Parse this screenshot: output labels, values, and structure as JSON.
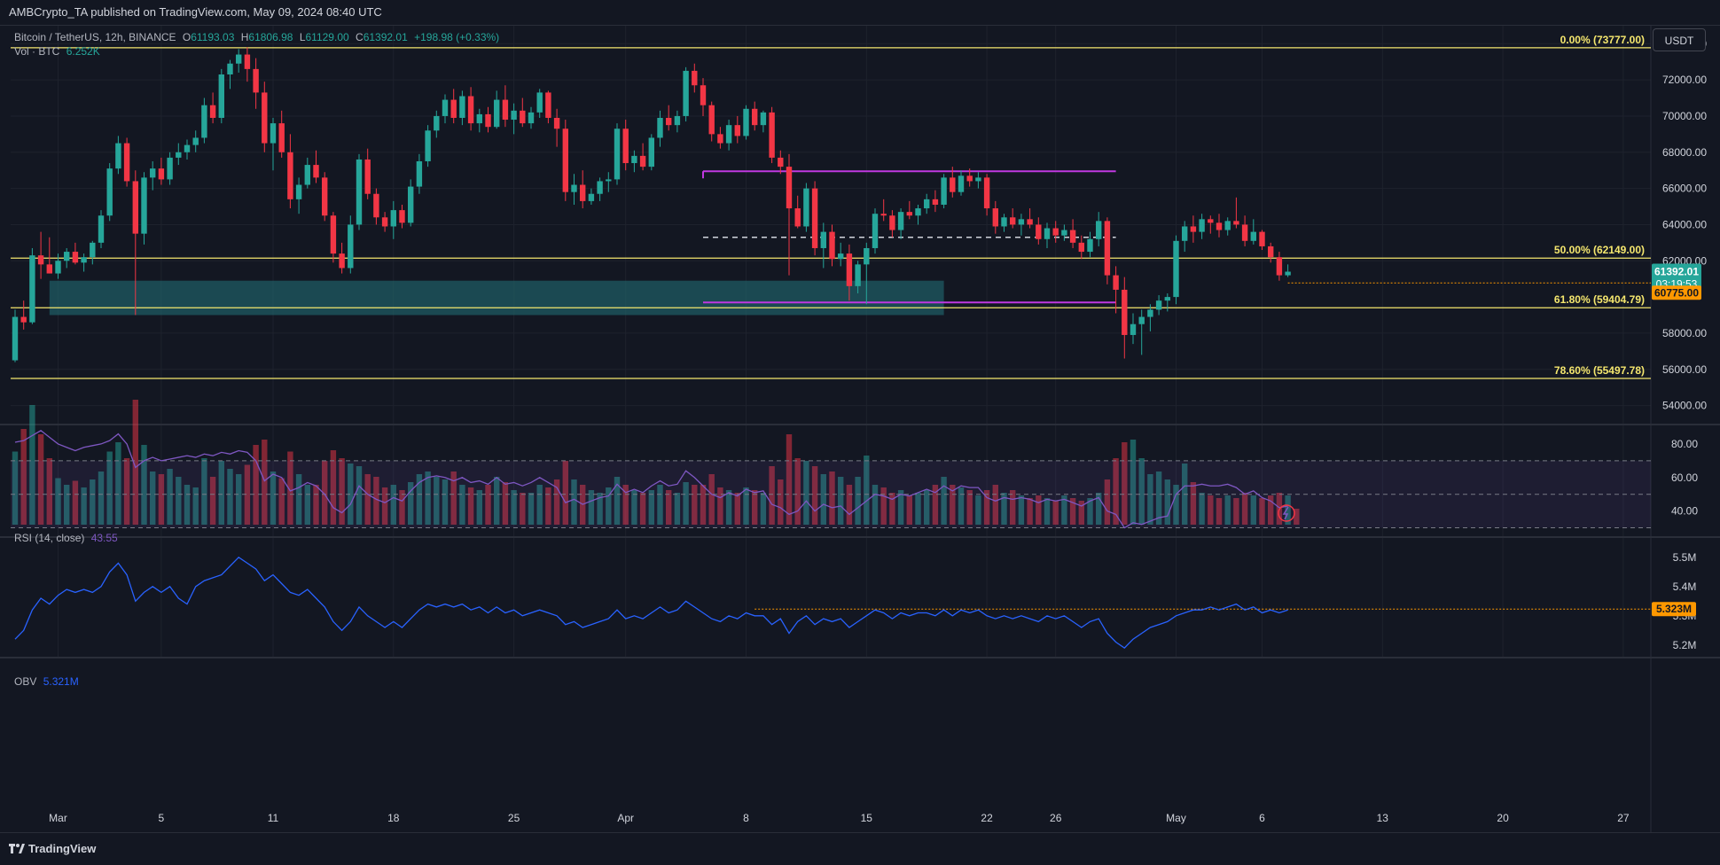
{
  "publisher": {
    "text": "AMBCrypto_TA published on TradingView.com, May 09, 2024 08:40 UTC"
  },
  "legend": {
    "symbol": "Bitcoin / TetherUS, 12h, BINANCE",
    "open_label": "O",
    "open": "61193.03",
    "high_label": "H",
    "high": "61806.98",
    "low_label": "L",
    "low": "61129.00",
    "close_label": "C",
    "close": "61392.01",
    "change": "+198.98 (+0.33%)",
    "vol_label": "Vol · BTC",
    "vol_value": "6.252K"
  },
  "currency": "USDT",
  "rsi": {
    "label": "RSI (14, close)",
    "value": "43.55"
  },
  "obv": {
    "label": "OBV",
    "value": "5.321M",
    "price_tag": "5.323M"
  },
  "price_tags": {
    "last": "61392.01",
    "countdown": "03:19:53",
    "level": "60775.00"
  },
  "footer": {
    "brand": "TradingView"
  },
  "colors": {
    "up": "#26a69a",
    "down": "#f23645",
    "fib": "#f5e76e",
    "range": "#c038e0",
    "rsi": "#7e57c2",
    "obv": "#2962ff",
    "zone": "#1f5f66",
    "tag": "#ff9800"
  },
  "chart_data": {
    "type": "candlestick",
    "timeframe": "12h",
    "x_ticks": [
      "Mar",
      "5",
      "11",
      "18",
      "25",
      "Apr",
      "8",
      "15",
      "22",
      "26",
      "May",
      "6",
      "13",
      "20",
      "27"
    ],
    "y_ticks": [
      "74000.00",
      "72000.00",
      "70000.00",
      "68000.00",
      "66000.00",
      "64000.00",
      "62000.00",
      "58000.00",
      "56000.00",
      "54000.00"
    ],
    "ylim": [
      53000,
      74700
    ],
    "fib_levels": [
      {
        "label": "0.00% (73777.00)",
        "value": 73777
      },
      {
        "label": "50.00% (62149.00)",
        "value": 62149
      },
      {
        "label": "61.80% (59404.79)",
        "value": 59404.79
      },
      {
        "label": "78.60% (55497.78)",
        "value": 55497.78
      }
    ],
    "range_high": 66950,
    "range_mid": 63300,
    "range_low": 59700,
    "demand_zone": [
      59000,
      60900
    ],
    "candles": [
      [
        56.5,
        59.3,
        56.4,
        58.9
      ],
      [
        58.9,
        59.8,
        58.2,
        58.6
      ],
      [
        58.6,
        62.7,
        58.5,
        62.3
      ],
      [
        62.3,
        63.6,
        61.0,
        61.8
      ],
      [
        61.8,
        63.3,
        61.3,
        61.3
      ],
      [
        61.3,
        62.4,
        61.0,
        62.0
      ],
      [
        62.0,
        62.7,
        61.6,
        62.5
      ],
      [
        62.5,
        63.0,
        61.8,
        61.9
      ],
      [
        61.9,
        62.4,
        61.4,
        62.2
      ],
      [
        62.2,
        63.1,
        61.8,
        63.0
      ],
      [
        63.0,
        64.8,
        62.7,
        64.5
      ],
      [
        64.5,
        67.4,
        64.2,
        67.1
      ],
      [
        67.1,
        68.9,
        66.8,
        68.5
      ],
      [
        68.5,
        68.8,
        66.1,
        66.4
      ],
      [
        66.4,
        67.0,
        59.0,
        63.5
      ],
      [
        63.5,
        66.9,
        62.9,
        66.6
      ],
      [
        66.6,
        67.5,
        65.9,
        67.1
      ],
      [
        67.1,
        67.7,
        66.2,
        66.5
      ],
      [
        66.5,
        68.0,
        66.2,
        67.7
      ],
      [
        67.7,
        68.5,
        67.3,
        68.0
      ],
      [
        68.0,
        68.7,
        67.6,
        68.4
      ],
      [
        68.4,
        69.2,
        68.0,
        68.8
      ],
      [
        68.8,
        71.0,
        68.5,
        70.6
      ],
      [
        70.6,
        71.3,
        69.6,
        69.9
      ],
      [
        69.9,
        72.6,
        69.6,
        72.3
      ],
      [
        72.3,
        73.1,
        71.5,
        72.9
      ],
      [
        72.9,
        73.7,
        72.4,
        73.4
      ],
      [
        73.4,
        73.8,
        71.9,
        72.6
      ],
      [
        72.6,
        73.2,
        70.4,
        71.3
      ],
      [
        71.3,
        71.9,
        68.0,
        68.5
      ],
      [
        68.5,
        69.9,
        67.0,
        69.6
      ],
      [
        69.6,
        70.3,
        67.7,
        68.0
      ],
      [
        68.0,
        69.0,
        64.9,
        65.4
      ],
      [
        65.4,
        66.6,
        64.6,
        66.2
      ],
      [
        66.2,
        67.7,
        66.0,
        67.3
      ],
      [
        67.3,
        68.1,
        66.3,
        66.6
      ],
      [
        66.6,
        66.9,
        64.2,
        64.5
      ],
      [
        64.5,
        64.7,
        61.9,
        62.4
      ],
      [
        62.4,
        63.0,
        61.3,
        61.6
      ],
      [
        61.6,
        64.5,
        61.3,
        64.0
      ],
      [
        64.0,
        67.9,
        63.7,
        67.6
      ],
      [
        67.6,
        68.2,
        65.4,
        65.7
      ],
      [
        65.7,
        66.0,
        64.0,
        64.4
      ],
      [
        64.4,
        64.7,
        63.6,
        63.9
      ],
      [
        63.9,
        65.3,
        63.2,
        64.8
      ],
      [
        64.8,
        65.1,
        63.8,
        64.1
      ],
      [
        64.1,
        66.5,
        63.9,
        66.1
      ],
      [
        66.1,
        67.9,
        65.7,
        67.5
      ],
      [
        67.5,
        69.5,
        67.2,
        69.2
      ],
      [
        69.2,
        70.3,
        68.8,
        70.0
      ],
      [
        70.0,
        71.2,
        69.6,
        70.9
      ],
      [
        70.9,
        71.5,
        69.6,
        69.9
      ],
      [
        69.9,
        71.4,
        69.5,
        71.1
      ],
      [
        71.1,
        71.6,
        69.2,
        69.6
      ],
      [
        69.6,
        70.4,
        69.1,
        70.1
      ],
      [
        70.1,
        70.5,
        69.1,
        69.4
      ],
      [
        69.4,
        71.4,
        69.3,
        70.9
      ],
      [
        70.9,
        71.7,
        69.4,
        69.8
      ],
      [
        69.8,
        70.7,
        69.0,
        70.3
      ],
      [
        70.3,
        71.0,
        69.4,
        69.6
      ],
      [
        69.6,
        70.5,
        69.3,
        70.2
      ],
      [
        70.2,
        71.5,
        69.9,
        71.3
      ],
      [
        71.3,
        71.4,
        69.6,
        69.9
      ],
      [
        69.9,
        70.4,
        68.3,
        69.3
      ],
      [
        69.3,
        69.8,
        65.3,
        65.8
      ],
      [
        65.8,
        66.8,
        65.1,
        66.2
      ],
      [
        66.2,
        67.0,
        64.9,
        65.3
      ],
      [
        65.3,
        66.0,
        65.1,
        65.7
      ],
      [
        65.7,
        66.6,
        65.3,
        66.4
      ],
      [
        66.4,
        66.9,
        65.8,
        66.5
      ],
      [
        66.5,
        69.6,
        66.2,
        69.3
      ],
      [
        69.3,
        69.8,
        67.0,
        67.4
      ],
      [
        67.4,
        68.1,
        66.9,
        67.8
      ],
      [
        67.8,
        68.5,
        67.0,
        67.2
      ],
      [
        67.2,
        69.0,
        67.0,
        68.8
      ],
      [
        68.8,
        70.3,
        68.3,
        69.9
      ],
      [
        69.9,
        70.6,
        69.2,
        69.5
      ],
      [
        69.5,
        70.3,
        69.1,
        70.0
      ],
      [
        70.0,
        72.7,
        69.7,
        72.5
      ],
      [
        72.5,
        72.9,
        71.3,
        71.7
      ],
      [
        71.7,
        72.1,
        70.0,
        70.6
      ],
      [
        70.6,
        70.8,
        68.6,
        69.0
      ],
      [
        69.0,
        69.4,
        68.2,
        68.5
      ],
      [
        68.5,
        69.8,
        68.1,
        69.5
      ],
      [
        69.5,
        70.0,
        68.5,
        68.9
      ],
      [
        68.9,
        70.6,
        68.7,
        70.4
      ],
      [
        70.4,
        70.8,
        69.2,
        69.5
      ],
      [
        69.5,
        70.3,
        69.1,
        70.2
      ],
      [
        70.2,
        70.5,
        67.4,
        67.7
      ],
      [
        67.7,
        68.1,
        66.8,
        67.2
      ],
      [
        67.2,
        67.9,
        61.2,
        64.9
      ],
      [
        64.9,
        65.6,
        63.8,
        63.9
      ],
      [
        63.9,
        66.3,
        63.6,
        66.0
      ],
      [
        66.0,
        66.4,
        62.3,
        62.7
      ],
      [
        62.7,
        64.1,
        61.6,
        63.6
      ],
      [
        63.6,
        64.0,
        61.7,
        62.1
      ],
      [
        62.1,
        63.0,
        61.7,
        62.4
      ],
      [
        62.4,
        62.9,
        59.8,
        60.6
      ],
      [
        60.6,
        62.0,
        60.2,
        61.8
      ],
      [
        61.8,
        63.0,
        59.6,
        62.7
      ],
      [
        62.7,
        64.9,
        62.4,
        64.6
      ],
      [
        64.6,
        65.4,
        64.2,
        64.5
      ],
      [
        64.5,
        64.8,
        63.3,
        63.7
      ],
      [
        63.7,
        64.9,
        63.2,
        64.7
      ],
      [
        64.7,
        65.3,
        64.3,
        64.5
      ],
      [
        64.5,
        65.1,
        64.0,
        64.9
      ],
      [
        64.9,
        65.7,
        64.6,
        65.4
      ],
      [
        65.4,
        65.9,
        64.7,
        65.1
      ],
      [
        65.1,
        66.8,
        64.9,
        66.6
      ],
      [
        66.6,
        67.2,
        65.5,
        65.8
      ],
      [
        65.8,
        67.0,
        65.6,
        66.7
      ],
      [
        66.7,
        67.1,
        66.1,
        66.4
      ],
      [
        66.4,
        66.9,
        66.0,
        66.6
      ],
      [
        66.6,
        66.8,
        64.5,
        64.9
      ],
      [
        64.9,
        65.3,
        63.5,
        63.9
      ],
      [
        63.9,
        64.6,
        63.6,
        64.4
      ],
      [
        64.4,
        64.9,
        63.8,
        64.0
      ],
      [
        64.0,
        64.6,
        63.4,
        64.3
      ],
      [
        64.3,
        64.9,
        63.8,
        64.0
      ],
      [
        64.0,
        64.4,
        62.9,
        63.2
      ],
      [
        63.2,
        64.1,
        62.7,
        63.8
      ],
      [
        63.8,
        64.2,
        63.0,
        63.4
      ],
      [
        63.4,
        64.0,
        63.1,
        63.7
      ],
      [
        63.7,
        64.3,
        62.7,
        63.0
      ],
      [
        63.0,
        63.4,
        62.1,
        62.5
      ],
      [
        62.5,
        63.6,
        62.2,
        63.2
      ],
      [
        63.2,
        64.7,
        62.8,
        64.2
      ],
      [
        64.2,
        64.4,
        60.7,
        61.2
      ],
      [
        61.2,
        61.7,
        59.1,
        60.4
      ],
      [
        60.4,
        61.1,
        56.6,
        57.9
      ],
      [
        57.9,
        59.1,
        57.4,
        58.5
      ],
      [
        58.5,
        59.3,
        56.8,
        58.9
      ],
      [
        58.9,
        59.6,
        58.1,
        59.3
      ],
      [
        59.3,
        60.1,
        59.0,
        59.8
      ],
      [
        59.8,
        60.2,
        59.2,
        60.0
      ],
      [
        60.0,
        63.4,
        59.6,
        63.1
      ],
      [
        63.1,
        64.2,
        62.5,
        63.9
      ],
      [
        63.9,
        64.5,
        63.0,
        63.6
      ],
      [
        63.6,
        64.6,
        63.2,
        64.3
      ],
      [
        64.3,
        64.5,
        63.5,
        64.1
      ],
      [
        64.1,
        64.6,
        63.3,
        63.7
      ],
      [
        63.7,
        64.4,
        63.4,
        64.2
      ],
      [
        64.2,
        65.5,
        63.8,
        64.0
      ],
      [
        64.0,
        64.5,
        62.8,
        63.1
      ],
      [
        63.1,
        64.3,
        62.9,
        63.6
      ],
      [
        63.6,
        63.7,
        62.6,
        62.8
      ],
      [
        62.8,
        63.0,
        61.9,
        62.2
      ],
      [
        62.2,
        62.5,
        60.9,
        61.2
      ],
      [
        61.2,
        61.8,
        61.1,
        61.4
      ]
    ],
    "volume_scale": "relative",
    "volume": [
      0.55,
      0.72,
      0.9,
      0.68,
      0.5,
      0.35,
      0.3,
      0.33,
      0.28,
      0.34,
      0.4,
      0.55,
      0.62,
      0.5,
      0.94,
      0.6,
      0.4,
      0.38,
      0.42,
      0.36,
      0.3,
      0.28,
      0.5,
      0.36,
      0.48,
      0.42,
      0.38,
      0.45,
      0.6,
      0.64,
      0.4,
      0.35,
      0.55,
      0.38,
      0.3,
      0.3,
      0.48,
      0.56,
      0.5,
      0.46,
      0.44,
      0.38,
      0.36,
      0.28,
      0.3,
      0.26,
      0.32,
      0.38,
      0.4,
      0.36,
      0.34,
      0.4,
      0.3,
      0.28,
      0.26,
      0.3,
      0.36,
      0.32,
      0.26,
      0.24,
      0.24,
      0.3,
      0.28,
      0.34,
      0.48,
      0.34,
      0.3,
      0.26,
      0.24,
      0.28,
      0.36,
      0.3,
      0.26,
      0.24,
      0.26,
      0.3,
      0.26,
      0.24,
      0.32,
      0.3,
      0.3,
      0.38,
      0.28,
      0.26,
      0.24,
      0.28,
      0.26,
      0.24,
      0.44,
      0.34,
      0.68,
      0.5,
      0.48,
      0.44,
      0.38,
      0.4,
      0.36,
      0.3,
      0.36,
      0.52,
      0.3,
      0.28,
      0.24,
      0.26,
      0.22,
      0.24,
      0.26,
      0.3,
      0.36,
      0.3,
      0.28,
      0.26,
      0.22,
      0.26,
      0.3,
      0.24,
      0.26,
      0.22,
      0.2,
      0.22,
      0.2,
      0.18,
      0.22,
      0.2,
      0.18,
      0.2,
      0.24,
      0.34,
      0.5,
      0.62,
      0.64,
      0.5,
      0.38,
      0.4,
      0.34,
      0.3,
      0.46,
      0.32,
      0.24,
      0.22,
      0.2,
      0.22,
      0.2,
      0.24,
      0.22,
      0.2,
      0.22,
      0.24,
      0.22,
      0.12
    ],
    "rsi_ticks": [
      "80.00",
      "60.00",
      "40.00"
    ],
    "rsi_levels": [
      70,
      50,
      30
    ],
    "rsi_range": [
      25,
      90
    ],
    "rsi_series": [
      81,
      82,
      85,
      88,
      84,
      80,
      78,
      76,
      78,
      79,
      80,
      82,
      86,
      80,
      66,
      70,
      72,
      70,
      71,
      72,
      73,
      72,
      74,
      73,
      75,
      74,
      76,
      75,
      70,
      58,
      62,
      60,
      52,
      54,
      57,
      55,
      50,
      42,
      39,
      44,
      55,
      50,
      47,
      45,
      48,
      46,
      52,
      57,
      60,
      61,
      60,
      58,
      60,
      57,
      58,
      56,
      60,
      56,
      57,
      55,
      57,
      60,
      57,
      54,
      45,
      47,
      44,
      46,
      48,
      49,
      56,
      51,
      53,
      51,
      55,
      58,
      55,
      56,
      64,
      60,
      55,
      50,
      48,
      51,
      49,
      53,
      51,
      52,
      44,
      42,
      38,
      40,
      46,
      40,
      44,
      42,
      43,
      38,
      42,
      46,
      50,
      49,
      47,
      50,
      49,
      51,
      53,
      51,
      55,
      52,
      55,
      54,
      54,
      48,
      46,
      48,
      47,
      48,
      47,
      45,
      47,
      46,
      47,
      45,
      43,
      46,
      48,
      40,
      38,
      30,
      33,
      32,
      34,
      36,
      37,
      50,
      55,
      55,
      56,
      55,
      55,
      56,
      54,
      50,
      52,
      48,
      46,
      42,
      43
    ],
    "obv_ticks": [
      "5.5M",
      "5.4M",
      "5.3M",
      "5.2M"
    ],
    "obv_range": [
      5.16,
      5.56
    ],
    "obv_series": [
      5.22,
      5.25,
      5.32,
      5.36,
      5.34,
      5.37,
      5.39,
      5.38,
      5.39,
      5.38,
      5.4,
      5.45,
      5.48,
      5.44,
      5.35,
      5.38,
      5.4,
      5.38,
      5.4,
      5.36,
      5.34,
      5.4,
      5.42,
      5.43,
      5.44,
      5.47,
      5.5,
      5.48,
      5.46,
      5.42,
      5.44,
      5.41,
      5.38,
      5.37,
      5.39,
      5.36,
      5.33,
      5.28,
      5.25,
      5.28,
      5.33,
      5.3,
      5.28,
      5.26,
      5.28,
      5.26,
      5.29,
      5.32,
      5.34,
      5.33,
      5.34,
      5.33,
      5.34,
      5.32,
      5.33,
      5.31,
      5.33,
      5.31,
      5.32,
      5.3,
      5.31,
      5.32,
      5.31,
      5.3,
      5.27,
      5.28,
      5.26,
      5.27,
      5.28,
      5.29,
      5.32,
      5.29,
      5.3,
      5.29,
      5.31,
      5.33,
      5.31,
      5.32,
      5.35,
      5.33,
      5.31,
      5.29,
      5.28,
      5.3,
      5.29,
      5.31,
      5.3,
      5.3,
      5.27,
      5.29,
      5.24,
      5.28,
      5.3,
      5.27,
      5.29,
      5.28,
      5.29,
      5.26,
      5.28,
      5.3,
      5.32,
      5.31,
      5.29,
      5.31,
      5.3,
      5.31,
      5.31,
      5.3,
      5.32,
      5.3,
      5.32,
      5.31,
      5.32,
      5.3,
      5.29,
      5.3,
      5.29,
      5.3,
      5.29,
      5.28,
      5.3,
      5.29,
      5.3,
      5.28,
      5.26,
      5.28,
      5.29,
      5.24,
      5.21,
      5.19,
      5.22,
      5.24,
      5.26,
      5.27,
      5.28,
      5.3,
      5.31,
      5.32,
      5.32,
      5.33,
      5.32,
      5.33,
      5.34,
      5.32,
      5.33,
      5.31,
      5.32,
      5.31,
      5.32
    ]
  }
}
